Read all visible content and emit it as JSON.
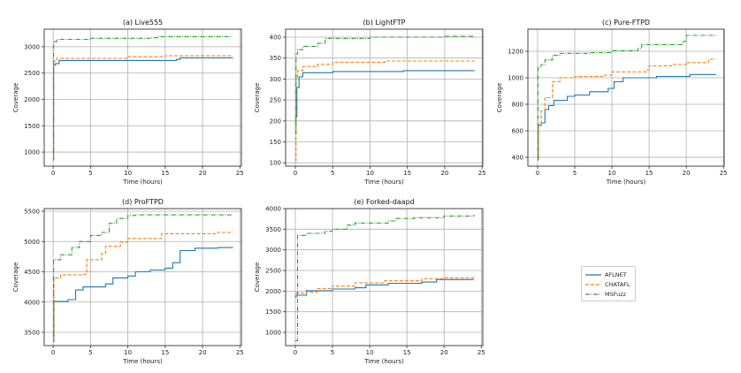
{
  "legend": {
    "location": "lower-right of figure",
    "entries": [
      {
        "label": "AFLNET",
        "color": "#1f77b4",
        "style": "solid"
      },
      {
        "label": "CHATAFL",
        "color": "#ff7f0e",
        "style": "dashed"
      },
      {
        "label": "MSFuzz",
        "color": "#2ca02c",
        "style": "dashdot"
      }
    ]
  },
  "chart_data": [
    {
      "type": "line",
      "title": "(a) Live555",
      "xlabel": "Time (hours)",
      "ylabel": "Coverage",
      "xlim": [
        -1.2,
        25.2
      ],
      "ylim": [
        733,
        3333
      ],
      "grid": true,
      "xticks": [
        0,
        5,
        10,
        15,
        20,
        25
      ],
      "yticks": [
        1000,
        1500,
        2000,
        2500,
        3000
      ],
      "series": [
        {
          "name": "AFLNET",
          "points": [
            [
              0,
              850
            ],
            [
              0.05,
              2650
            ],
            [
              0.3,
              2680
            ],
            [
              0.8,
              2740
            ],
            [
              16.5,
              2760
            ],
            [
              17,
              2790
            ],
            [
              24,
              2800
            ]
          ]
        },
        {
          "name": "CHATAFL",
          "points": [
            [
              0,
              900
            ],
            [
              0.05,
              2730
            ],
            [
              0.5,
              2780
            ],
            [
              10,
              2810
            ],
            [
              15,
              2830
            ],
            [
              24,
              2830
            ]
          ]
        },
        {
          "name": "MSFuzz",
          "points": [
            [
              0,
              850
            ],
            [
              0.05,
              3100
            ],
            [
              0.5,
              3140
            ],
            [
              5,
              3160
            ],
            [
              13,
              3170
            ],
            [
              14,
              3190
            ],
            [
              24,
              3190
            ]
          ]
        }
      ]
    },
    {
      "type": "line",
      "title": "(b) LightFTP",
      "xlabel": "Time (hours)",
      "ylabel": "Coverage",
      "xlim": [
        -1.3,
        25.1
      ],
      "ylim": [
        92,
        419
      ],
      "grid": true,
      "xticks": [
        0,
        5,
        10,
        15,
        20,
        25
      ],
      "yticks": [
        100,
        150,
        200,
        250,
        300,
        350,
        400
      ],
      "series": [
        {
          "name": "AFLNET",
          "points": [
            [
              0,
              200
            ],
            [
              0.1,
              210
            ],
            [
              0.2,
              280
            ],
            [
              0.5,
              305
            ],
            [
              1,
              315
            ],
            [
              5,
              318
            ],
            [
              14.5,
              320
            ],
            [
              24,
              320
            ]
          ]
        },
        {
          "name": "CHATAFL",
          "points": [
            [
              0,
              105
            ],
            [
              0.1,
              300
            ],
            [
              0.3,
              320
            ],
            [
              1,
              330
            ],
            [
              3,
              335
            ],
            [
              5,
              340
            ],
            [
              12,
              343
            ],
            [
              24,
              343
            ]
          ]
        },
        {
          "name": "MSFuzz",
          "points": [
            [
              0,
              170
            ],
            [
              0.1,
              360
            ],
            [
              0.3,
              370
            ],
            [
              1,
              378
            ],
            [
              3,
              385
            ],
            [
              4,
              397
            ],
            [
              10,
              400
            ],
            [
              20,
              402
            ],
            [
              24,
              402
            ]
          ]
        }
      ]
    },
    {
      "type": "line",
      "title": "(c) Pure-FTPD",
      "xlabel": "Time (hours)",
      "ylabel": "Coverage",
      "xlim": [
        -1.3,
        25.1
      ],
      "ylim": [
        333,
        1367
      ],
      "grid": true,
      "xticks": [
        0,
        5,
        10,
        15,
        20,
        25
      ],
      "yticks": [
        400,
        600,
        800,
        1000,
        1200
      ],
      "series": [
        {
          "name": "AFLNET",
          "points": [
            [
              0,
              380
            ],
            [
              0.1,
              640
            ],
            [
              0.5,
              660
            ],
            [
              1,
              760
            ],
            [
              1.5,
              790
            ],
            [
              2.2,
              830
            ],
            [
              4,
              860
            ],
            [
              5,
              870
            ],
            [
              7,
              895
            ],
            [
              9.5,
              920
            ],
            [
              10.3,
              970
            ],
            [
              11.5,
              1000
            ],
            [
              16,
              1010
            ],
            [
              20.5,
              1025
            ],
            [
              24,
              1025
            ]
          ]
        },
        {
          "name": "CHATAFL",
          "points": [
            [
              0,
              400
            ],
            [
              0.1,
              650
            ],
            [
              0.5,
              750
            ],
            [
              1,
              850
            ],
            [
              2,
              970
            ],
            [
              3,
              1000
            ],
            [
              5,
              1010
            ],
            [
              9,
              1020
            ],
            [
              10,
              1045
            ],
            [
              14.7,
              1060
            ],
            [
              15,
              1090
            ],
            [
              18,
              1100
            ],
            [
              20,
              1115
            ],
            [
              23,
              1140
            ],
            [
              24,
              1140
            ]
          ]
        },
        {
          "name": "MSFuzz",
          "points": [
            [
              0,
              390
            ],
            [
              0.05,
              1080
            ],
            [
              0.5,
              1100
            ],
            [
              1,
              1135
            ],
            [
              2,
              1170
            ],
            [
              3,
              1185
            ],
            [
              7,
              1190
            ],
            [
              10,
              1205
            ],
            [
              13.5,
              1220
            ],
            [
              14,
              1250
            ],
            [
              19.5,
              1275
            ],
            [
              20,
              1320
            ],
            [
              24,
              1320
            ]
          ]
        }
      ]
    },
    {
      "type": "line",
      "title": "(d) ProFTPD",
      "xlabel": "Time (hours)",
      "ylabel": "Coverage",
      "xlim": [
        -1.2,
        25.2
      ],
      "ylim": [
        3281,
        5544
      ],
      "grid": true,
      "xticks": [
        0,
        5,
        10,
        15,
        20,
        25
      ],
      "yticks": [
        3500,
        4000,
        4500,
        5000,
        5500
      ],
      "series": [
        {
          "name": "AFLNET",
          "points": [
            [
              0,
              3350
            ],
            [
              0.1,
              4010
            ],
            [
              2,
              4040
            ],
            [
              3,
              4200
            ],
            [
              4,
              4250
            ],
            [
              7,
              4300
            ],
            [
              8,
              4400
            ],
            [
              10,
              4430
            ],
            [
              11,
              4500
            ],
            [
              13,
              4530
            ],
            [
              15,
              4560
            ],
            [
              16,
              4650
            ],
            [
              17,
              4850
            ],
            [
              19,
              4890
            ],
            [
              22,
              4900
            ],
            [
              24,
              4910
            ]
          ]
        },
        {
          "name": "CHATAFL",
          "points": [
            [
              0,
              3380
            ],
            [
              0.1,
              4400
            ],
            [
              1,
              4450
            ],
            [
              4,
              4460
            ],
            [
              4.5,
              4700
            ],
            [
              6.5,
              4800
            ],
            [
              7,
              4920
            ],
            [
              9,
              4990
            ],
            [
              10,
              5050
            ],
            [
              14.5,
              5130
            ],
            [
              22,
              5150
            ],
            [
              24,
              5160
            ]
          ]
        },
        {
          "name": "MSFuzz",
          "points": [
            [
              0,
              3450
            ],
            [
              0.05,
              4700
            ],
            [
              1,
              4780
            ],
            [
              2.5,
              4900
            ],
            [
              3.5,
              5000
            ],
            [
              5,
              5100
            ],
            [
              6.5,
              5150
            ],
            [
              7.5,
              5300
            ],
            [
              8.5,
              5380
            ],
            [
              10,
              5430
            ],
            [
              11,
              5440
            ],
            [
              24,
              5440
            ]
          ]
        }
      ]
    },
    {
      "type": "line",
      "title": "(e) Forked-daapd",
      "xlabel": "Time (hours)",
      "ylabel": "Coverage",
      "xlim": [
        -1.3,
        25.2
      ],
      "ylim": [
        679,
        4000
      ],
      "grid": true,
      "xticks": [
        0,
        5,
        10,
        15,
        20,
        25
      ],
      "yticks": [
        1000,
        1500,
        2000,
        2500,
        3000,
        3500,
        4000
      ],
      "series": [
        {
          "name": "AFLNET",
          "points": [
            [
              0,
              1850
            ],
            [
              0.1,
              1900
            ],
            [
              1.5,
              2010
            ],
            [
              5,
              2050
            ],
            [
              8,
              2080
            ],
            [
              9.5,
              2150
            ],
            [
              12.5,
              2190
            ],
            [
              17,
              2220
            ],
            [
              19,
              2280
            ],
            [
              24,
              2280
            ]
          ]
        },
        {
          "name": "CHATAFL",
          "points": [
            [
              0,
              1950
            ],
            [
              1.5,
              1980
            ],
            [
              3,
              2060
            ],
            [
              5,
              2120
            ],
            [
              8,
              2200
            ],
            [
              12,
              2250
            ],
            [
              17,
              2300
            ],
            [
              20,
              2320
            ],
            [
              24,
              2340
            ]
          ]
        },
        {
          "name": "MSFuzz",
          "points": [
            [
              0,
              800
            ],
            [
              0.3,
              3350
            ],
            [
              1.5,
              3400
            ],
            [
              4,
              3450
            ],
            [
              5,
              3500
            ],
            [
              7,
              3600
            ],
            [
              8,
              3650
            ],
            [
              12.5,
              3700
            ],
            [
              13.5,
              3760
            ],
            [
              16,
              3780
            ],
            [
              20,
              3820
            ],
            [
              24,
              3850
            ]
          ]
        }
      ]
    }
  ]
}
